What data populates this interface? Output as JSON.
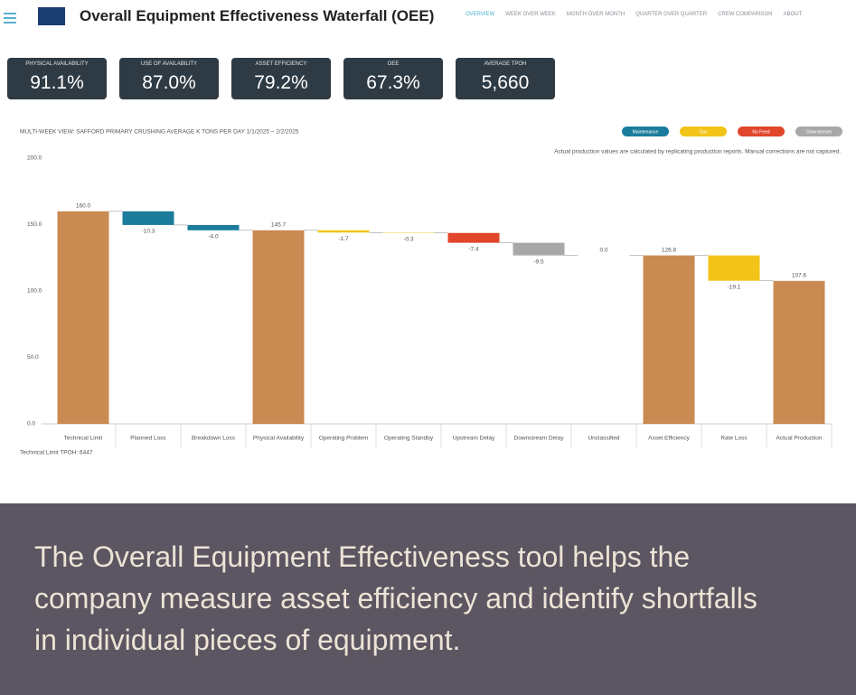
{
  "header": {
    "title": "Overall Equipment Effectiveness Waterfall (OEE)",
    "nav": [
      "OVERVIEW",
      "WEEK OVER WEEK",
      "MONTH OVER MONTH",
      "QUARTER OVER QUARTER",
      "CREW COMPARISON",
      "ABOUT"
    ]
  },
  "kpis": [
    {
      "label": "PHYSICAL AVAILABILITY",
      "value": "91.1%"
    },
    {
      "label": "USE OF AVAILABILITY",
      "value": "87.0%"
    },
    {
      "label": "ASSET EFFICIENCY",
      "value": "79.2%"
    },
    {
      "label": "OEE",
      "value": "67.3%"
    },
    {
      "label": "AVERAGE TPOH",
      "value": "5,660"
    }
  ],
  "chart_data": {
    "type": "waterfall",
    "title": "MULTI-WEEK VIEW: SAFFORD PRIMARY CRUSHING AVERAGE K TONS PER DAY 1/1/2025 – 2/2/2025",
    "note": "Actual production values are calculated by replicating production reports. Manual corrections are not captured.",
    "footnote": "Technical Limit TPOH: 6447",
    "legend": [
      {
        "name": "Maintenance",
        "color": "#1b7c9c"
      },
      {
        "name": "Ops",
        "color": "#f2c417"
      },
      {
        "name": "No Feed",
        "color": "#e1462b"
      },
      {
        "name": "Downstream",
        "color": "#a8a8a8"
      }
    ],
    "categories": [
      "Technical Limit",
      "Planned Loss",
      "Breakdown Loss",
      "Physical Availability",
      "Operating Problem",
      "Operating Standby",
      "Upstream Delay",
      "Downstream Delay",
      "Unclassified",
      "Asset Efficiency",
      "Rate Loss",
      "Actual Production"
    ],
    "values": [
      160.0,
      -10.3,
      -4.0,
      145.7,
      -1.7,
      -0.3,
      -7.4,
      -9.5,
      0.0,
      126.8,
      -19.1,
      107.6
    ],
    "value_labels": [
      "160.0",
      "-10.3",
      "-4.0",
      "145.7",
      "-1.7",
      "-0.3",
      "-7.4",
      "-9.5",
      "0.0",
      "126.8",
      "-19.1",
      "107.6"
    ],
    "colors": [
      "#c98b52",
      "#1b7c9c",
      "#1b7c9c",
      "#c98b52",
      "#f2c417",
      "#f2c417",
      "#e1462b",
      "#a8a8a8",
      "#a8a8a8",
      "#c98b52",
      "#f2c417",
      "#c98b52"
    ],
    "ylim": [
      0,
      200
    ],
    "yticks": [
      {
        "value": 0,
        "label": "0.0"
      },
      {
        "value": 50,
        "label": "50.0"
      },
      {
        "value": 100,
        "label": "100.0"
      },
      {
        "value": 150,
        "label": "150.0"
      },
      {
        "value": 200,
        "label": "200.0"
      }
    ],
    "grid": false
  },
  "caption": "The Overall Equipment Effectiveness tool helps the company measure asset efficiency and identify shortfalls in individual pieces of equipment."
}
